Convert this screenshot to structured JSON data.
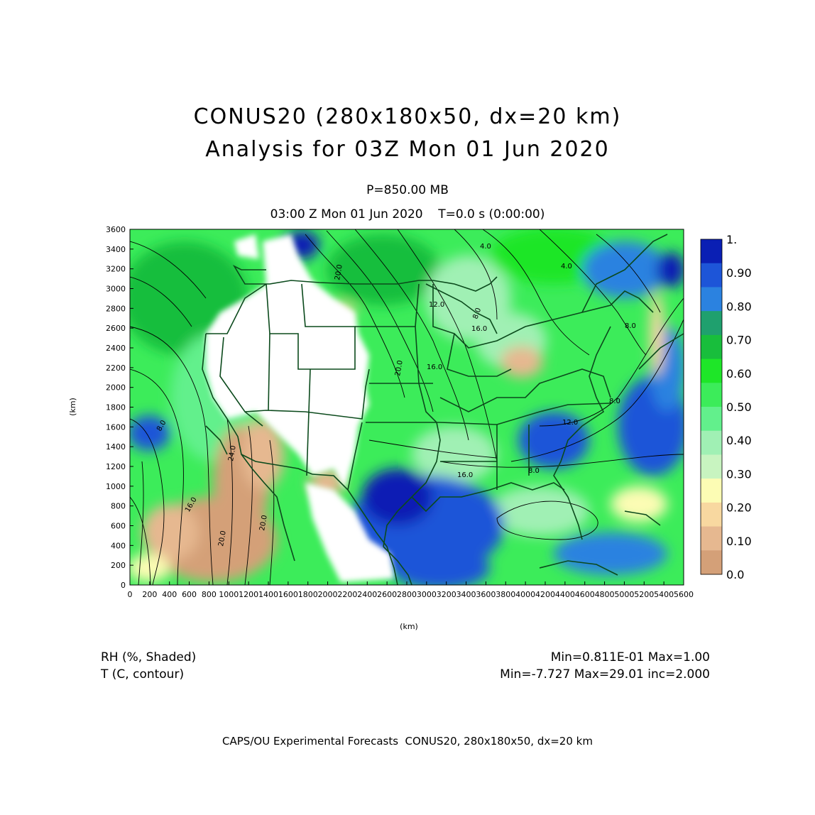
{
  "titles": {
    "line1": "CONUS20 (280x180x50, dx=20 km)",
    "line2": "Analysis for 03Z Mon 01 Jun 2020",
    "level": "P=850.00 MB",
    "time": "03:00 Z Mon 01 Jun 2020    T=0.0 s (0:00:00)"
  },
  "axes": {
    "x_label": "(km)",
    "y_label": "(km)",
    "x_range": [
      0,
      5600
    ],
    "y_range": [
      0,
      3600
    ],
    "x_ticks": [
      "0",
      "200",
      "400",
      "600",
      "800",
      "1000",
      "1200",
      "1400",
      "1600",
      "1800",
      "2000",
      "2200",
      "2400",
      "2600",
      "2800",
      "3000",
      "3200",
      "3400",
      "3600",
      "3800",
      "4000",
      "4200",
      "4400",
      "4600",
      "4800",
      "5000",
      "5200",
      "5400",
      "5600"
    ],
    "y_ticks": [
      "0",
      "200",
      "400",
      "600",
      "800",
      "1000",
      "1200",
      "1400",
      "1600",
      "1800",
      "2000",
      "2200",
      "2400",
      "2600",
      "2800",
      "3000",
      "3200",
      "3400",
      "3600"
    ]
  },
  "colorbar": {
    "labels": [
      "1.",
      "0.90",
      "0.80",
      "0.70",
      "0.60",
      "0.50",
      "0.40",
      "0.30",
      "0.20",
      "0.10",
      "0.0"
    ],
    "colors": [
      "#0a1fb4",
      "#1d55d8",
      "#2b82e0",
      "#1fa06e",
      "#18be3c",
      "#1ee628",
      "#3cec5a",
      "#62f08c",
      "#a0f0b4",
      "#c8f4c0",
      "#fcfcb4",
      "#f8d8a0",
      "#e6b890",
      "#d4a078"
    ]
  },
  "contours": {
    "labels": [
      "4.0",
      "4.0",
      "8.0",
      "12.0",
      "16.0",
      "16.0",
      "20.0",
      "20.0",
      "8.0",
      "8.0",
      "12.0",
      "16.0",
      "8.0",
      "20.0",
      "16.0",
      "8.0",
      "20.0",
      "24.0"
    ]
  },
  "colors": {
    "map_line": "#0b4a1c",
    "contour": "#000000",
    "no_data": "#ffffff"
  },
  "footer": {
    "left1": "RH (%, Shaded)",
    "left2": "T (C, contour)",
    "right1": "Min=0.811E-01 Max=1.00",
    "right2": "Min=-7.727 Max=29.01 inc=2.000",
    "credit": "CAPS/OU Experimental Forecasts  CONUS20, 280x180x50, dx=20 km"
  }
}
